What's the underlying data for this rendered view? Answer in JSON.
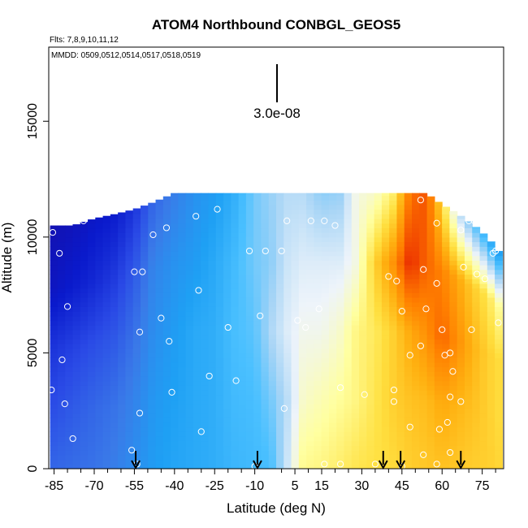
{
  "chart_data": {
    "type": "heatmap",
    "title": "ATOM4 Northbound CONBGL_GEOS5",
    "flights_note": "Flts: 7,8,9,10,11,12",
    "dates_note": "MMDD: 0509,0512,0514,0517,0518,0519",
    "xlabel": "Latitude (deg N)",
    "ylabel": "Altitude (m)",
    "xlim": [
      -87,
      83
    ],
    "ylim": [
      0,
      18200
    ],
    "x_ticks": [
      -85,
      -70,
      -55,
      -40,
      -25,
      -10,
      5,
      15,
      30,
      45,
      60,
      75
    ],
    "x_minor_ticks": [
      -80,
      -75,
      -65,
      -60,
      -50,
      -45,
      -35,
      -30,
      -20,
      -15,
      0,
      10,
      20,
      25,
      35,
      40,
      50,
      55,
      65,
      70,
      80
    ],
    "y_ticks": [
      0,
      5000,
      10000,
      15000
    ],
    "scale_bar_label": "3.0e-08",
    "colorscale": [
      "#1a0a9a",
      "#0a1acc",
      "#2a4ae6",
      "#3a7ae8",
      "#1ea0f4",
      "#4ac0ff",
      "#a6d4f6",
      "#eef4fa",
      "#ffffa0",
      "#ffe040",
      "#ffb010",
      "#ff8000",
      "#f04000",
      "#d20000"
    ],
    "columns": [
      {
        "lat": -85,
        "top": 10500,
        "vals": [
          0.2,
          0.16,
          0.12,
          0.06,
          0.04
        ]
      },
      {
        "lat": -78,
        "top": 10500,
        "vals": [
          0.21,
          0.18,
          0.14,
          0.08,
          0.05
        ]
      },
      {
        "lat": -70,
        "top": 10800,
        "vals": [
          0.22,
          0.2,
          0.16,
          0.1,
          0.07
        ]
      },
      {
        "lat": -62,
        "top": 11000,
        "vals": [
          0.24,
          0.22,
          0.18,
          0.13,
          0.08
        ]
      },
      {
        "lat": -55,
        "top": 11200,
        "vals": [
          0.27,
          0.25,
          0.22,
          0.18,
          0.12
        ]
      },
      {
        "lat": -48,
        "top": 11500,
        "vals": [
          0.3,
          0.29,
          0.27,
          0.25,
          0.2
        ]
      },
      {
        "lat": -40,
        "top": 11900,
        "vals": [
          0.32,
          0.31,
          0.3,
          0.28,
          0.24
        ]
      },
      {
        "lat": -32,
        "top": 11900,
        "vals": [
          0.33,
          0.33,
          0.33,
          0.3,
          0.28
        ]
      },
      {
        "lat": -25,
        "top": 11900,
        "vals": [
          0.34,
          0.34,
          0.34,
          0.33,
          0.3
        ]
      },
      {
        "lat": -18,
        "top": 11900,
        "vals": [
          0.36,
          0.37,
          0.38,
          0.37,
          0.34
        ]
      },
      {
        "lat": -10,
        "top": 11900,
        "vals": [
          0.37,
          0.38,
          0.4,
          0.42,
          0.42
        ]
      },
      {
        "lat": -4,
        "top": 11900,
        "vals": [
          0.38,
          0.42,
          0.47,
          0.44,
          0.45
        ]
      },
      {
        "lat": 2,
        "top": 11900,
        "vals": [
          0.5,
          0.48,
          0.52,
          0.5,
          0.48
        ]
      },
      {
        "lat": 8,
        "top": 11900,
        "vals": [
          0.63,
          0.58,
          0.55,
          0.52,
          0.48
        ]
      },
      {
        "lat": 15,
        "top": 11900,
        "vals": [
          0.64,
          0.6,
          0.55,
          0.52,
          0.44
        ]
      },
      {
        "lat": 22,
        "top": 11900,
        "vals": [
          0.66,
          0.62,
          0.58,
          0.52,
          0.45
        ]
      },
      {
        "lat": 28,
        "top": 11900,
        "vals": [
          0.68,
          0.64,
          0.64,
          0.56,
          0.56
        ]
      },
      {
        "lat": 35,
        "top": 11900,
        "vals": [
          0.69,
          0.68,
          0.67,
          0.72,
          0.58
        ]
      },
      {
        "lat": 42,
        "top": 11900,
        "vals": [
          0.7,
          0.72,
          0.72,
          0.82,
          0.66
        ]
      },
      {
        "lat": 48,
        "top": 11900,
        "vals": [
          0.72,
          0.74,
          0.78,
          0.95,
          0.86
        ]
      },
      {
        "lat": 54,
        "top": 11900,
        "vals": [
          0.73,
          0.75,
          0.82,
          0.88,
          0.9
        ]
      },
      {
        "lat": 60,
        "top": 11400,
        "vals": [
          0.74,
          0.78,
          0.88,
          0.84,
          0.7
        ]
      },
      {
        "lat": 66,
        "top": 11000,
        "vals": [
          0.73,
          0.76,
          0.82,
          0.78,
          0.5
        ]
      },
      {
        "lat": 72,
        "top": 10500,
        "vals": [
          0.72,
          0.74,
          0.76,
          0.72,
          0.4
        ]
      },
      {
        "lat": 77,
        "top": 10000,
        "vals": [
          0.72,
          0.72,
          0.72,
          0.68,
          0.34
        ]
      },
      {
        "lat": 81,
        "top": 9400,
        "vals": [
          0.71,
          0.7,
          0.7,
          0.62,
          0.3
        ]
      }
    ],
    "sample_points": [
      [
        -85.5,
        10200
      ],
      [
        -83,
        9300
      ],
      [
        -80,
        7000
      ],
      [
        -82,
        4700
      ],
      [
        -81,
        2800
      ],
      [
        -78,
        1300
      ],
      [
        -86,
        3400
      ],
      [
        -74,
        10700
      ],
      [
        -55,
        8500
      ],
      [
        -52,
        8500
      ],
      [
        -53,
        5900
      ],
      [
        -53,
        2400
      ],
      [
        -56,
        800
      ],
      [
        -54,
        200
      ],
      [
        -48,
        10100
      ],
      [
        -43,
        10400
      ],
      [
        -42,
        5500
      ],
      [
        -41,
        3300
      ],
      [
        -45,
        6500
      ],
      [
        -32,
        10900
      ],
      [
        -31,
        7700
      ],
      [
        -30,
        1600
      ],
      [
        -27,
        4000
      ],
      [
        -24,
        11200
      ],
      [
        -20,
        6100
      ],
      [
        -17,
        3800
      ],
      [
        -12,
        9400
      ],
      [
        -10,
        100
      ],
      [
        -8,
        6600
      ],
      [
        -6,
        9400
      ],
      [
        1,
        2600
      ],
      [
        0,
        9400
      ],
      [
        2,
        10700
      ],
      [
        6,
        6400
      ],
      [
        9,
        6100
      ],
      [
        14,
        6900
      ],
      [
        11,
        10700
      ],
      [
        16,
        10700
      ],
      [
        20,
        10500
      ],
      [
        22,
        3500
      ],
      [
        31,
        3200
      ],
      [
        35,
        200
      ],
      [
        42,
        3400
      ],
      [
        42,
        2900
      ],
      [
        40,
        8300
      ],
      [
        43,
        8100
      ],
      [
        45,
        6800
      ],
      [
        48,
        4900
      ],
      [
        52,
        5300
      ],
      [
        54,
        6900
      ],
      [
        53,
        8600
      ],
      [
        52,
        11600
      ],
      [
        58,
        10600
      ],
      [
        58,
        8000
      ],
      [
        60,
        6000
      ],
      [
        61,
        4900
      ],
      [
        63,
        5000
      ],
      [
        64,
        4200
      ],
      [
        63,
        3100
      ],
      [
        67,
        2900
      ],
      [
        62,
        2000
      ],
      [
        59,
        1700
      ],
      [
        63,
        700
      ],
      [
        70,
        10700
      ],
      [
        67,
        10300
      ],
      [
        68,
        8700
      ],
      [
        73,
        8400
      ],
      [
        71,
        6000
      ],
      [
        72,
        10700
      ],
      [
        79,
        9300
      ],
      [
        80,
        9400
      ],
      [
        81,
        6300
      ],
      [
        76,
        8200
      ],
      [
        48,
        1800
      ],
      [
        53,
        600
      ],
      [
        58,
        200
      ],
      [
        45,
        100
      ],
      [
        16,
        200
      ],
      [
        22,
        200
      ]
    ],
    "arrows_lat": [
      -54.5,
      -9,
      38,
      44.5,
      67
    ]
  }
}
